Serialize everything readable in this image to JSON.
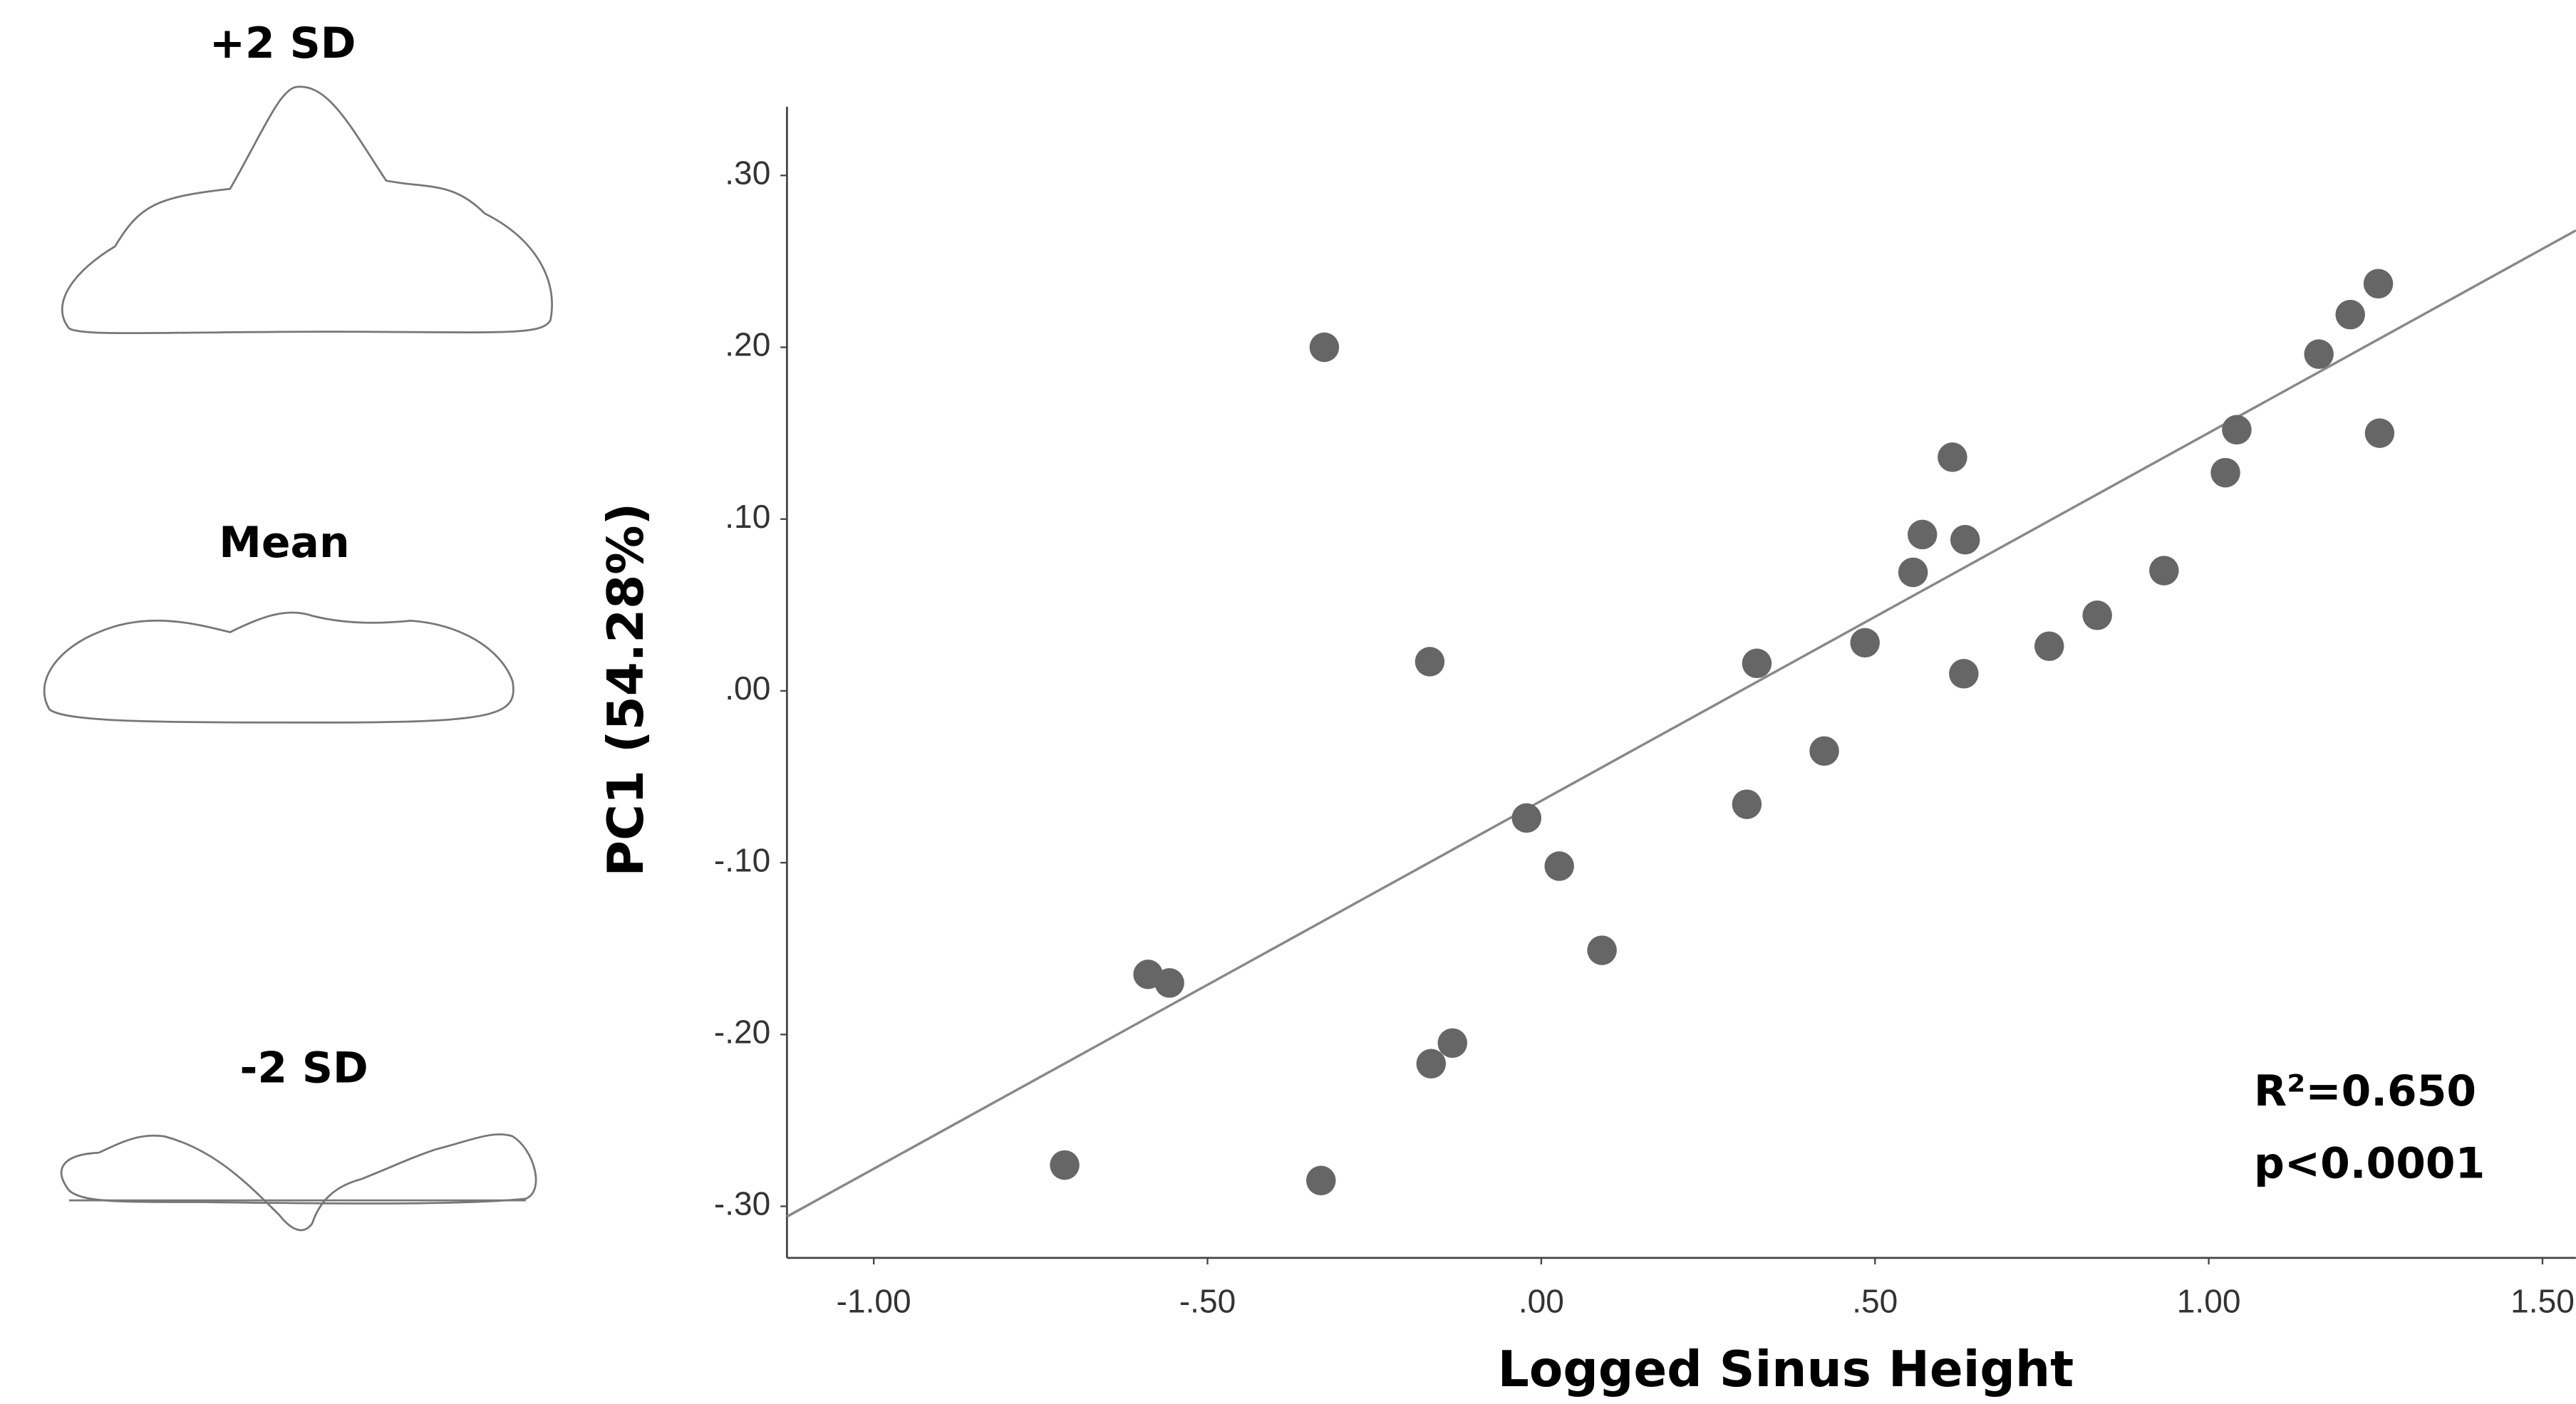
{
  "shape_labels": [
    "+2 SD",
    "Mean",
    "-2 SD"
  ],
  "chart_data": {
    "type": "scatter",
    "xlabel": "Logged Sinus Height",
    "ylabel": "PC1 (54.28%)",
    "annotations": [
      "R²=0.650",
      "p<0.0001"
    ],
    "xlim": [
      -1.13,
      1.55
    ],
    "ylim": [
      -0.33,
      0.34
    ],
    "xticks": [
      {
        "value": -1,
        "label": "-1.00"
      },
      {
        "value": -0.5,
        "label": "-.50"
      },
      {
        "value": 0,
        "label": ".00"
      },
      {
        "value": 0.5,
        "label": ".50"
      },
      {
        "value": 1,
        "label": "1.00"
      },
      {
        "value": 1.5,
        "label": "1.50"
      }
    ],
    "yticks": [
      {
        "value": -0.3,
        "label": "-.30"
      },
      {
        "value": -0.2,
        "label": "-.20"
      },
      {
        "value": -0.1,
        "label": "-.10"
      },
      {
        "value": 0,
        "label": ".00"
      },
      {
        "value": 0.1,
        "label": ".10"
      },
      {
        "value": 0.2,
        "label": ".20"
      },
      {
        "value": 0.3,
        "label": ".30"
      }
    ],
    "color": "#666666",
    "x": [
      -0.325,
      -0.167,
      -0.022,
      0.027,
      0.091,
      -0.589,
      -0.557,
      -0.714,
      -0.33,
      -0.165,
      -0.133,
      0.308,
      0.323,
      0.424,
      0.485,
      0.557,
      0.571,
      0.616,
      0.635,
      0.633,
      0.761,
      0.833,
      0.933,
      1.025,
      1.042,
      1.165,
      1.212,
      1.254,
      1.256
    ],
    "y": [
      0.2,
      0.017,
      -0.074,
      -0.102,
      -0.151,
      -0.165,
      -0.17,
      -0.276,
      -0.285,
      -0.217,
      -0.205,
      -0.066,
      0.016,
      -0.035,
      0.028,
      0.069,
      0.091,
      0.136,
      0.088,
      0.01,
      0.026,
      0.044,
      0.07,
      0.127,
      0.152,
      0.196,
      0.219,
      0.237,
      0.15
    ],
    "fit_line": {
      "x": [
        -1.13,
        1.55
      ],
      "y": [
        -0.306,
        0.268
      ],
      "color": "#888888"
    }
  }
}
